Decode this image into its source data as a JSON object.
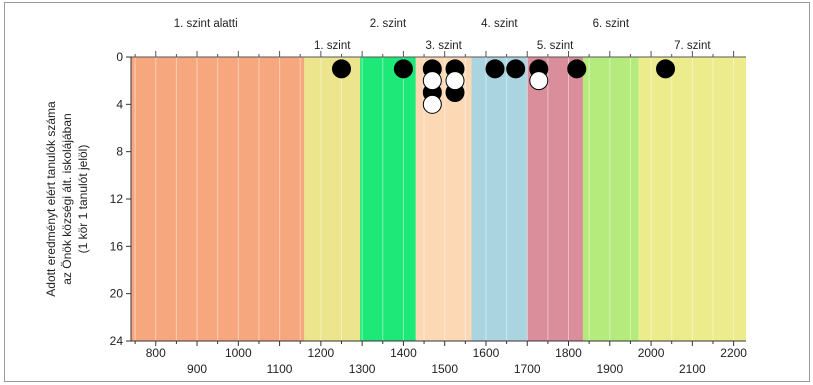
{
  "chart_data": {
    "type": "scatter",
    "ylabel_lines": [
      "Adott eredményt elért tanulók száma",
      "az Önök községi ált. iskolájában",
      "(1 kör 1 tanulót jelöl)"
    ],
    "xlim": [
      740,
      2230
    ],
    "ylim": [
      0,
      24
    ],
    "y_ticks": [
      0,
      4,
      8,
      12,
      16,
      20,
      24
    ],
    "x_ticks_upper": [
      800,
      1000,
      1200,
      1400,
      1600,
      1800,
      2000,
      2200
    ],
    "x_ticks_lower": [
      900,
      1100,
      1300,
      1500,
      1700,
      1900,
      2100
    ],
    "bands": [
      {
        "from": 740,
        "to": 1160,
        "color": "#f7a77e",
        "label": "1. szint alatti",
        "row": "top"
      },
      {
        "from": 1160,
        "to": 1295,
        "color": "#ece58e",
        "label": "1. szint",
        "row": "bottom"
      },
      {
        "from": 1295,
        "to": 1430,
        "color": "#1de878",
        "label": "2. szint",
        "row": "top"
      },
      {
        "from": 1430,
        "to": 1565,
        "color": "#fcd9b4",
        "label": "3. szint",
        "row": "bottom"
      },
      {
        "from": 1565,
        "to": 1700,
        "color": "#aad4e0",
        "label": "4. szint",
        "row": "top"
      },
      {
        "from": 1700,
        "to": 1835,
        "color": "#da8e9b",
        "label": "5. szint",
        "row": "bottom"
      },
      {
        "from": 1835,
        "to": 1970,
        "color": "#b5eb7c",
        "label": "6. szint",
        "row": "top"
      },
      {
        "from": 1970,
        "to": 2230,
        "color": "#ecec8c",
        "label": "7. szint",
        "row": "bottom"
      }
    ],
    "series": [
      {
        "fill": "#000000",
        "points": [
          {
            "x": 1250,
            "y": 1
          },
          {
            "x": 1400,
            "y": 1
          },
          {
            "x": 1470,
            "y": 1
          },
          {
            "x": 1470,
            "y": 3
          },
          {
            "x": 1525,
            "y": 1
          },
          {
            "x": 1525,
            "y": 3
          },
          {
            "x": 1622,
            "y": 1
          },
          {
            "x": 1672,
            "y": 1
          },
          {
            "x": 1728,
            "y": 1
          },
          {
            "x": 1820,
            "y": 1
          },
          {
            "x": 2035,
            "y": 1
          }
        ]
      },
      {
        "fill": "#ffffff",
        "points": [
          {
            "x": 1470,
            "y": 2
          },
          {
            "x": 1525,
            "y": 2
          },
          {
            "x": 1470,
            "y": 4
          },
          {
            "x": 1728,
            "y": 2
          }
        ]
      }
    ]
  }
}
